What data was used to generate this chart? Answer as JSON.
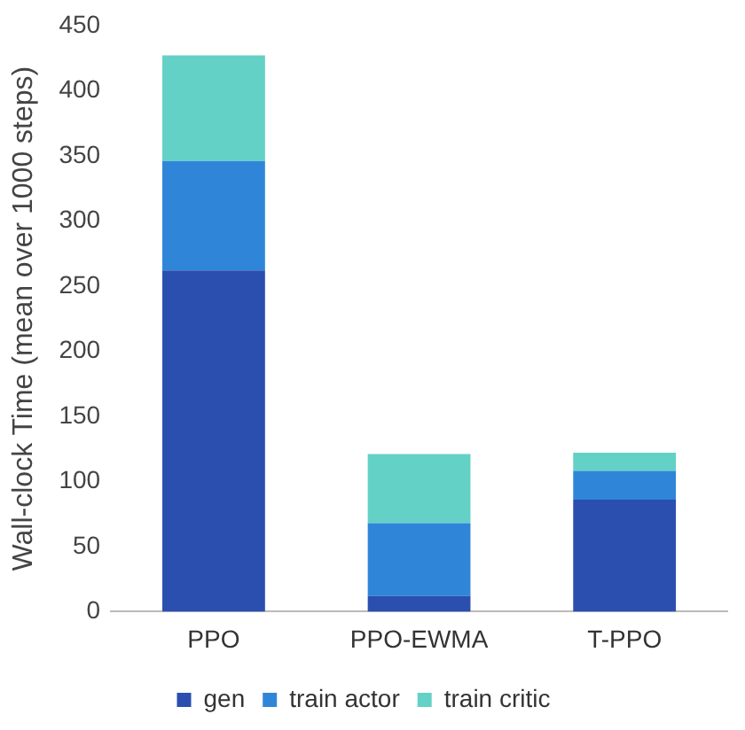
{
  "chart_data": {
    "type": "bar",
    "stacked": true,
    "ylabel": "Wall-clock Time (mean over 1000 steps)",
    "categories": [
      "PPO",
      "PPO-EWMA",
      "T-PPO"
    ],
    "series": [
      {
        "name": "gen",
        "color": "#2a4fae",
        "values": [
          262,
          12,
          86
        ]
      },
      {
        "name": "train actor",
        "color": "#2f86d9",
        "values": [
          84,
          56,
          22
        ]
      },
      {
        "name": "train critic",
        "color": "#63d1c6",
        "values": [
          81,
          53,
          14
        ]
      }
    ],
    "ylim": [
      0,
      450
    ],
    "yticks": [
      0,
      50,
      100,
      150,
      200,
      250,
      300,
      350,
      400,
      450
    ],
    "grid": false,
    "legend": "bottom"
  }
}
